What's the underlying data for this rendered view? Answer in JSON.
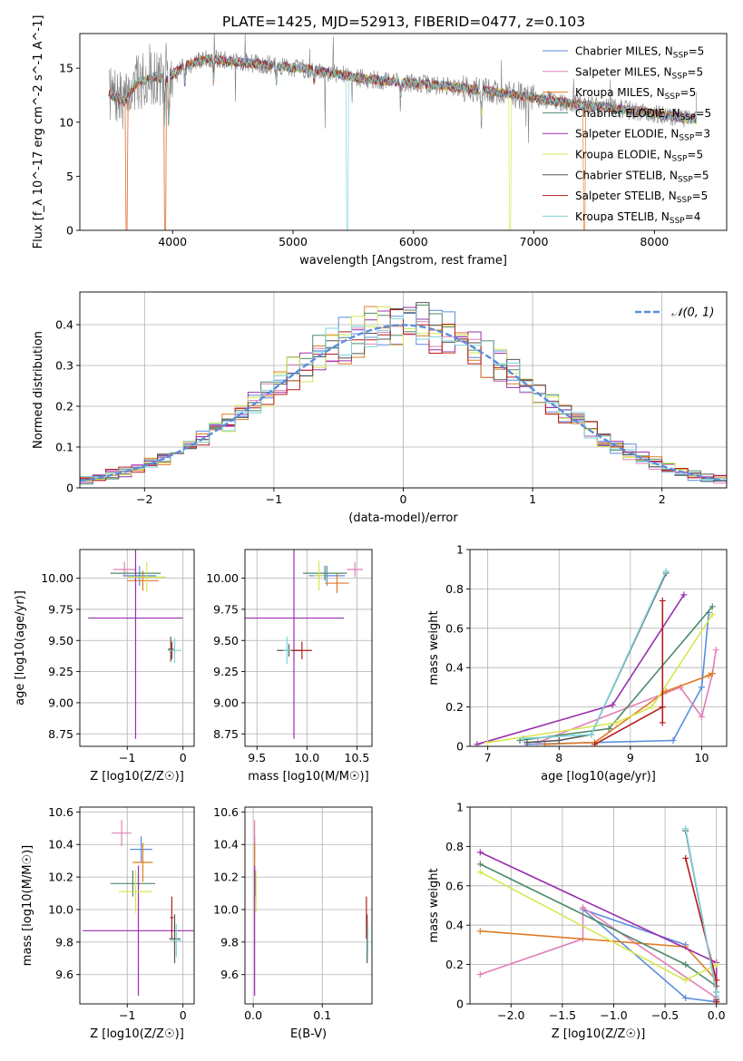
{
  "figure_title": "PLATE=1425, MJD=52913, FIBERID=0477, z=0.103",
  "colors": {
    "chabrier_miles": "#5b8ede",
    "salpeter_miles": "#e27fb7",
    "kroupa_miles": "#e07b25",
    "chabrier_elodie": "#4f8a6b",
    "salpeter_elodie": "#9b2fae",
    "kroupa_elodie": "#d4e84f",
    "chabrier_stelib": "#555555",
    "salpeter_stelib": "#b31c1c",
    "kroupa_stelib": "#7ed3da",
    "data_gray": "#7f7f7f",
    "normal_line": "#5b8ede",
    "grid": "#b0b0b0"
  },
  "chart_data": [
    {
      "id": "spectrum",
      "type": "line",
      "title": "PLATE=1425, MJD=52913, FIBERID=0477, z=0.103",
      "xlabel": "wavelength [Angstrom, rest frame]",
      "ylabel": "Flux [f_λ 10^-17 erg cm^-2 s^-1 A^-1]",
      "xlim": [
        3230,
        8600
      ],
      "ylim": [
        0,
        18.2
      ],
      "xticks": [
        4000,
        5000,
        6000,
        7000,
        8000
      ],
      "yticks": [
        0,
        5,
        10,
        15
      ],
      "grid": false,
      "legend_position": "top-right",
      "legend": [
        "Chabrier MILES, N_SSP=5",
        "Salpeter MILES, N_SSP=5",
        "Kroupa MILES, N_SSP=5",
        "Chabrier ELODIE, N_SSP=5",
        "Salpeter ELODIE, N_SSP=3",
        "Kroupa ELODIE, N_SSP=5",
        "Chabrier STELIB, N_SSP=5",
        "Salpeter STELIB, N_SSP=5",
        "Kroupa STELIB, N_SSP=4"
      ],
      "continuum_anchors": {
        "x": [
          3470,
          3600,
          3700,
          3850,
          3950,
          4100,
          4300,
          4500,
          4800,
          5200,
          5600,
          6000,
          6400,
          6800,
          7200,
          7600,
          8000,
          8350
        ],
        "y": [
          12.6,
          11.9,
          13.6,
          14.2,
          14.0,
          15.2,
          15.9,
          15.6,
          15.3,
          14.8,
          14.0,
          13.6,
          13.2,
          12.6,
          11.9,
          11.4,
          10.8,
          10.2
        ]
      }
    },
    {
      "id": "residuals",
      "type": "line",
      "xlabel": "(data-model)/error",
      "ylabel": "Normed distribution",
      "xlim": [
        -2.5,
        2.5
      ],
      "ylim": [
        0,
        0.48
      ],
      "xticks": [
        -2,
        -1,
        0,
        1,
        2
      ],
      "yticks": [
        0.0,
        0.1,
        0.2,
        0.3,
        0.4
      ],
      "grid": true,
      "legend_position": "top-right",
      "normal_label": "𝒩(0, 1)",
      "bin_width": 0.1
    },
    {
      "id": "age_vs_Z",
      "type": "scatter",
      "xlabel": "Z [log10(Z/Z☉)]",
      "ylabel": "age  [log10(age/yr)]",
      "xlim": [
        -1.85,
        0.2
      ],
      "ylim": [
        8.65,
        10.23
      ],
      "xticks": [
        -1,
        0
      ],
      "yticks": [
        8.75,
        9.0,
        9.25,
        9.5,
        9.75,
        10.0
      ],
      "ytick_labels": [
        "8.75",
        "9.00",
        "9.25",
        "9.50",
        "9.75",
        "10.00"
      ],
      "grid": true,
      "points": [
        {
          "model": "chabrier_miles",
          "x": -0.78,
          "xerr": 0.3,
          "y": 10.02,
          "yerr": 0.08
        },
        {
          "model": "salpeter_miles",
          "x": -1.05,
          "xerr": 0.2,
          "y": 10.07,
          "yerr": 0.06
        },
        {
          "model": "kroupa_miles",
          "x": -0.72,
          "xerr": 0.28,
          "y": 9.98,
          "yerr": 0.08
        },
        {
          "model": "chabrier_elodie",
          "x": -0.85,
          "xerr": 0.45,
          "y": 10.04,
          "yerr": 0.06
        },
        {
          "model": "salpeter_elodie",
          "x": -0.85,
          "xerr": 0.85,
          "y": 9.68,
          "yerr": 0.97
        },
        {
          "model": "kroupa_elodie",
          "x": -0.65,
          "xerr": 0.35,
          "y": 10.01,
          "yerr": 0.12
        },
        {
          "model": "chabrier_stelib",
          "x": -0.22,
          "xerr": 0.05,
          "y": 9.43,
          "yerr": 0.1
        },
        {
          "model": "salpeter_stelib",
          "x": -0.2,
          "xerr": 0.04,
          "y": 9.42,
          "yerr": 0.07
        },
        {
          "model": "kroupa_stelib",
          "x": -0.15,
          "xerr": 0.12,
          "y": 9.42,
          "yerr": 0.1
        }
      ]
    },
    {
      "id": "age_vs_mass",
      "type": "scatter",
      "xlabel": "mass [log10(M/M☉)]",
      "xlim": [
        9.38,
        10.65
      ],
      "ylim": [
        8.65,
        10.23
      ],
      "xticks": [
        9.5,
        10.0,
        10.5
      ],
      "xtick_labels": [
        "9.5",
        "10.0",
        "10.5"
      ],
      "yticks": [
        8.75,
        9.0,
        9.25,
        9.5,
        9.75,
        10.0
      ],
      "ytick_labels": [
        "8.75",
        "9.00",
        "9.25",
        "9.50",
        "9.75",
        "10.00"
      ],
      "grid": true,
      "points": [
        {
          "model": "chabrier_miles",
          "x": 10.2,
          "xerr": 0.18,
          "y": 10.02,
          "yerr": 0.08
        },
        {
          "model": "salpeter_miles",
          "x": 10.48,
          "xerr": 0.08,
          "y": 10.07,
          "yerr": 0.06
        },
        {
          "model": "kroupa_miles",
          "x": 10.3,
          "xerr": 0.12,
          "y": 9.96,
          "yerr": 0.08
        },
        {
          "model": "chabrier_elodie",
          "x": 10.18,
          "xerr": 0.22,
          "y": 10.04,
          "yerr": 0.06
        },
        {
          "model": "salpeter_elodie",
          "x": 9.87,
          "xerr": 0.5,
          "y": 9.68,
          "yerr": 0.97
        },
        {
          "model": "kroupa_elodie",
          "x": 10.12,
          "xerr": 0.05,
          "y": 10.02,
          "yerr": 0.12
        },
        {
          "model": "chabrier_stelib",
          "x": 9.82,
          "xerr": 0.12,
          "y": 9.42,
          "yerr": 0.05
        },
        {
          "model": "salpeter_stelib",
          "x": 9.95,
          "xerr": 0.1,
          "y": 9.42,
          "yerr": 0.07
        },
        {
          "model": "kroupa_stelib",
          "x": 9.8,
          "xerr": 0.04,
          "y": 9.42,
          "yerr": 0.11
        }
      ]
    },
    {
      "id": "mass_weight_vs_age",
      "type": "line",
      "xlabel": "age  [log10(age/yr)]",
      "ylabel": "mass weight",
      "xlim": [
        6.75,
        10.35
      ],
      "ylim": [
        0,
        1.0
      ],
      "xticks": [
        7,
        8,
        9,
        10
      ],
      "yticks": [
        0.0,
        0.2,
        0.4,
        0.6,
        0.8,
        1.0
      ],
      "grid": true,
      "series": [
        {
          "model": "chabrier_miles",
          "x": [
            7.55,
            9.6,
            10.0,
            10.1
          ],
          "y": [
            0.01,
            0.03,
            0.3,
            0.68
          ]
        },
        {
          "model": "salpeter_miles",
          "x": [
            7.7,
            9.7,
            10.0,
            10.15,
            10.2
          ],
          "y": [
            0.02,
            0.3,
            0.15,
            0.37,
            0.49
          ]
        },
        {
          "model": "kroupa_miles",
          "x": [
            7.8,
            8.5,
            9.5,
            10.1,
            10.15
          ],
          "y": [
            0.01,
            0.02,
            0.28,
            0.36,
            0.37
          ]
        },
        {
          "model": "chabrier_elodie",
          "x": [
            7.45,
            8.7,
            10.15
          ],
          "y": [
            0.03,
            0.09,
            0.71
          ]
        },
        {
          "model": "salpeter_elodie",
          "x": [
            6.85,
            8.75,
            9.75
          ],
          "y": [
            0.01,
            0.21,
            0.77
          ]
        },
        {
          "model": "kroupa_elodie",
          "x": [
            7.0,
            8.8,
            9.3,
            10.15
          ],
          "y": [
            0.02,
            0.12,
            0.2,
            0.67
          ]
        },
        {
          "model": "chabrier_stelib",
          "x": [
            7.55,
            8.0,
            8.45,
            9.5
          ],
          "y": [
            0.02,
            0.03,
            0.06,
            0.88
          ]
        },
        {
          "model": "salpeter_stelib",
          "x": [
            8.5,
            9.45,
            9.45,
            9.45
          ],
          "y": [
            0.01,
            0.2,
            0.12,
            0.74
          ]
        },
        {
          "model": "kroupa_stelib",
          "x": [
            7.5,
            8.45,
            9.5
          ],
          "y": [
            0.04,
            0.06,
            0.89
          ]
        }
      ]
    },
    {
      "id": "mass_vs_Z",
      "type": "scatter",
      "xlabel": "Z [log10(Z/Z☉)]",
      "ylabel": "mass [log10(M/M☉)]",
      "xlim": [
        -1.85,
        0.2
      ],
      "ylim": [
        9.42,
        10.63
      ],
      "xticks": [
        -1,
        0
      ],
      "yticks": [
        9.6,
        9.8,
        10.0,
        10.2,
        10.4,
        10.6
      ],
      "ytick_labels": [
        "9.6",
        "9.8",
        "10.0",
        "10.2",
        "10.4",
        "10.6"
      ],
      "grid": true,
      "points": [
        {
          "model": "chabrier_miles",
          "x": -0.75,
          "xerr": 0.2,
          "y": 10.37,
          "yerr": 0.08
        },
        {
          "model": "salpeter_miles",
          "x": -1.1,
          "xerr": 0.18,
          "y": 10.47,
          "yerr": 0.08
        },
        {
          "model": "kroupa_miles",
          "x": -0.72,
          "xerr": 0.18,
          "y": 10.29,
          "yerr": 0.12
        },
        {
          "model": "chabrier_elodie",
          "x": -0.9,
          "xerr": 0.4,
          "y": 10.16,
          "yerr": 0.08
        },
        {
          "model": "salpeter_elodie",
          "x": -0.8,
          "xerr": 1.0,
          "y": 9.87,
          "yerr": 0.4
        },
        {
          "model": "kroupa_elodie",
          "x": -0.85,
          "xerr": 0.3,
          "y": 10.11,
          "yerr": 0.13
        },
        {
          "model": "chabrier_stelib",
          "x": -0.15,
          "xerr": 0.1,
          "y": 9.82,
          "yerr": 0.15
        },
        {
          "model": "salpeter_stelib",
          "x": -0.2,
          "xerr": 0.03,
          "y": 9.95,
          "yerr": 0.13
        },
        {
          "model": "kroupa_stelib",
          "x": -0.12,
          "xerr": 0.1,
          "y": 9.81,
          "yerr": 0.1
        }
      ]
    },
    {
      "id": "mass_vs_ebv",
      "type": "scatter",
      "xlabel": "E(B-V)",
      "xlim": [
        -0.012,
        0.172
      ],
      "ylim": [
        9.42,
        10.63
      ],
      "xticks": [
        0.0,
        0.1
      ],
      "xtick_labels": [
        "0.0",
        "0.1"
      ],
      "yticks": [
        9.6,
        9.8,
        10.0,
        10.2,
        10.4,
        10.6
      ],
      "ytick_labels": [
        "9.6",
        "9.8",
        "10.0",
        "10.2",
        "10.4",
        "10.6"
      ],
      "grid": true,
      "points": [
        {
          "model": "chabrier_miles",
          "x": 0.002,
          "xerr": 0.0,
          "y": 10.37,
          "yerr": 0.08
        },
        {
          "model": "salpeter_miles",
          "x": 0.002,
          "xerr": 0.0,
          "y": 10.47,
          "yerr": 0.08
        },
        {
          "model": "kroupa_miles",
          "x": 0.002,
          "xerr": 0.0,
          "y": 10.29,
          "yerr": 0.12
        },
        {
          "model": "chabrier_elodie",
          "x": 0.003,
          "xerr": 0.0,
          "y": 10.16,
          "yerr": 0.08
        },
        {
          "model": "salpeter_elodie",
          "x": 0.002,
          "xerr": 0.0,
          "y": 9.87,
          "yerr": 0.4
        },
        {
          "model": "kroupa_elodie",
          "x": 0.004,
          "xerr": 0.0,
          "y": 10.11,
          "yerr": 0.13
        },
        {
          "model": "chabrier_stelib",
          "x": 0.165,
          "xerr": 0.0,
          "y": 9.82,
          "yerr": 0.15
        },
        {
          "model": "salpeter_stelib",
          "x": 0.164,
          "xerr": 0.0,
          "y": 9.95,
          "yerr": 0.13
        },
        {
          "model": "kroupa_stelib",
          "x": 0.166,
          "xerr": 0.0,
          "y": 9.81,
          "yerr": 0.1
        }
      ]
    },
    {
      "id": "mass_weight_vs_Z",
      "type": "line",
      "xlabel": "Z [log10(Z/Z☉)]",
      "ylabel": "mass weight",
      "xlim": [
        -2.4,
        0.1
      ],
      "ylim": [
        0,
        1.0
      ],
      "xticks": [
        -2.0,
        -1.5,
        -1.0,
        -0.5,
        0.0
      ],
      "xtick_labels": [
        "−2.0",
        "−1.5",
        "−1.0",
        "−0.5",
        "0.0"
      ],
      "yticks": [
        0.0,
        0.2,
        0.4,
        0.6,
        0.8,
        1.0
      ],
      "grid": true,
      "series": [
        {
          "model": "chabrier_miles",
          "x": [
            -0.3,
            -1.3,
            -0.3,
            0.0
          ],
          "y": [
            0.3,
            0.48,
            0.03,
            0.01
          ]
        },
        {
          "model": "salpeter_miles",
          "x": [
            -2.3,
            -1.3,
            -1.3,
            0.0
          ],
          "y": [
            0.15,
            0.33,
            0.49,
            0.03
          ]
        },
        {
          "model": "kroupa_miles",
          "x": [
            -2.3,
            -0.3,
            0.0,
            0.0
          ],
          "y": [
            0.37,
            0.29,
            0.12,
            0.01
          ]
        },
        {
          "model": "chabrier_elodie",
          "x": [
            -2.3,
            -0.3,
            0.0
          ],
          "y": [
            0.71,
            0.2,
            0.09
          ]
        },
        {
          "model": "salpeter_elodie",
          "x": [
            -2.3,
            0.0,
            0.0
          ],
          "y": [
            0.77,
            0.21,
            0.01
          ]
        },
        {
          "model": "kroupa_elodie",
          "x": [
            -2.3,
            -0.3,
            0.0
          ],
          "y": [
            0.67,
            0.12,
            0.2
          ]
        },
        {
          "model": "chabrier_stelib",
          "x": [
            -0.3,
            0.0,
            0.0
          ],
          "y": [
            0.88,
            0.06,
            0.02
          ]
        },
        {
          "model": "salpeter_stelib",
          "x": [
            -0.3,
            0.0,
            0.0
          ],
          "y": [
            0.74,
            0.12,
            0.01
          ]
        },
        {
          "model": "kroupa_stelib",
          "x": [
            -0.3,
            0.0,
            0.0
          ],
          "y": [
            0.89,
            0.06,
            0.04
          ]
        }
      ]
    }
  ]
}
